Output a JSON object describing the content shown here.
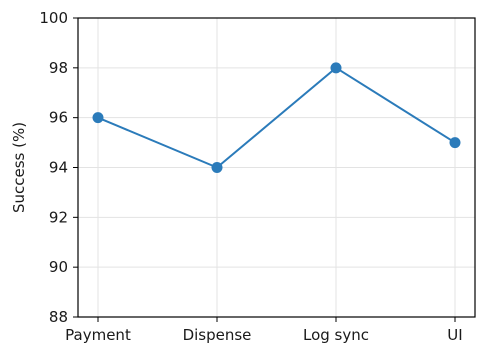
{
  "chart_data": {
    "type": "line",
    "categories": [
      "Payment",
      "Dispense",
      "Log sync",
      "UI"
    ],
    "series": [
      {
        "values": [
          96,
          94,
          98,
          95
        ],
        "color": "#2b7bba"
      }
    ],
    "title": "",
    "xlabel": "",
    "ylabel": "Success (%)",
    "ylim": [
      88,
      100
    ],
    "yticks": [
      88,
      90,
      92,
      94,
      96,
      98,
      100
    ],
    "grid": true,
    "legend": "none",
    "spines": [
      "left",
      "bottom"
    ]
  }
}
